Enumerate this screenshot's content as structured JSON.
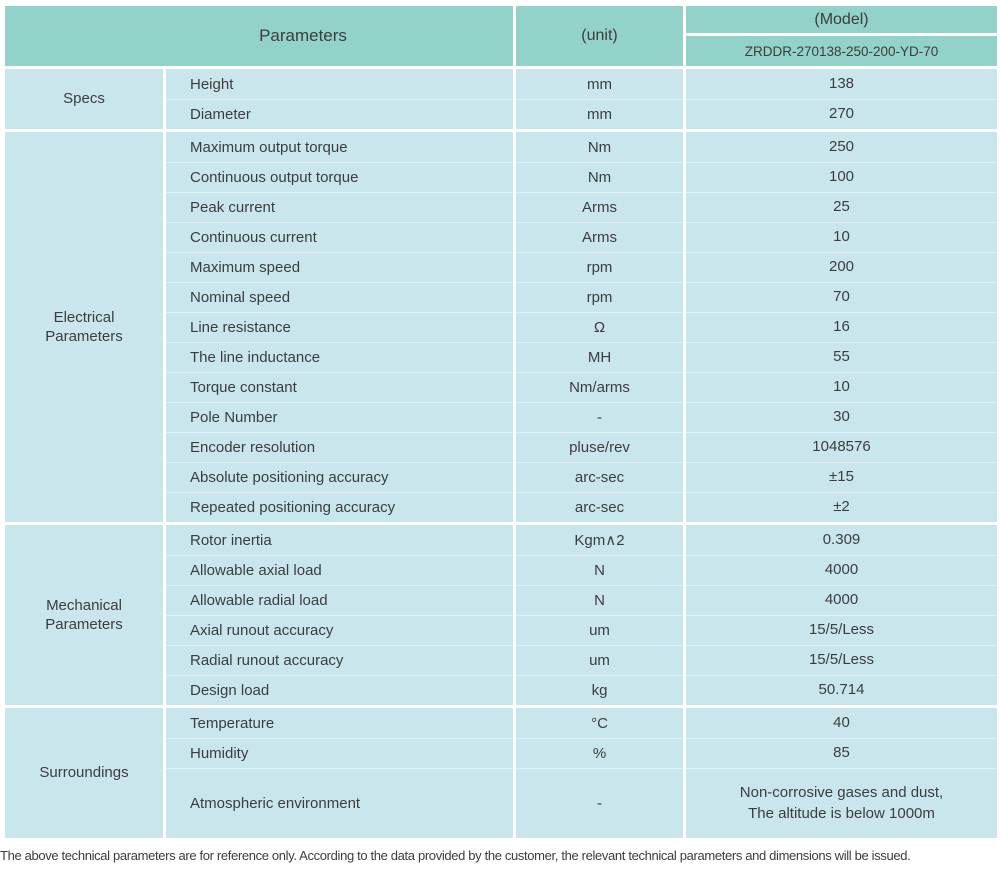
{
  "colors": {
    "header_bg": "#92d2c8",
    "cell_bg": "#c9e6ec",
    "grid_line": "#ffffff",
    "row_divider": "#e4f1f4",
    "text": "#3d3d3d"
  },
  "table": {
    "header": {
      "parameters_label": "Parameters",
      "unit_label": "(unit)",
      "model_label": "(Model)",
      "model_value": "ZRDDR-270138-250-200-YD-70"
    },
    "sections": [
      {
        "category": "Specs",
        "rows": [
          {
            "name": "Height",
            "unit": "mm",
            "value": "138"
          },
          {
            "name": "Diameter",
            "unit": "mm",
            "value": "270"
          }
        ]
      },
      {
        "category": "Electrical\nParameters",
        "rows": [
          {
            "name": "Maximum output torque",
            "unit": "Nm",
            "value": "250"
          },
          {
            "name": "Continuous output torque",
            "unit": "Nm",
            "value": "100"
          },
          {
            "name": "Peak current",
            "unit": "Arms",
            "value": "25"
          },
          {
            "name": "Continuous current",
            "unit": "Arms",
            "value": "10"
          },
          {
            "name": "Maximum speed",
            "unit": "rpm",
            "value": "200"
          },
          {
            "name": "Nominal speed",
            "unit": "rpm",
            "value": "70"
          },
          {
            "name": "Line resistance",
            "unit": "Ω",
            "value": "16"
          },
          {
            "name": "The line inductance",
            "unit": "MH",
            "value": "55"
          },
          {
            "name": "Torque constant",
            "unit": "Nm/arms",
            "value": "10"
          },
          {
            "name": "Pole Number",
            "unit": "-",
            "value": "30"
          },
          {
            "name": "Encoder resolution",
            "unit": "pluse/rev",
            "value": "1048576"
          },
          {
            "name": "Absolute positioning accuracy",
            "unit": "arc-sec",
            "value": "±15"
          },
          {
            "name": "Repeated positioning accuracy",
            "unit": "arc-sec",
            "value": "±2"
          }
        ]
      },
      {
        "category": "Mechanical\nParameters",
        "rows": [
          {
            "name": "Rotor inertia",
            "unit": "Kgm∧2",
            "value": "0.309"
          },
          {
            "name": "Allowable axial load",
            "unit": "N",
            "value": "4000"
          },
          {
            "name": "Allowable radial load",
            "unit": "N",
            "value": "4000"
          },
          {
            "name": "Axial runout accuracy",
            "unit": "um",
            "value": "15/5/Less"
          },
          {
            "name": "Radial runout accuracy",
            "unit": "um",
            "value": "15/5/Less"
          },
          {
            "name": "Design load",
            "unit": "kg",
            "value": "50.714"
          }
        ]
      },
      {
        "category": "Surroundings",
        "rows": [
          {
            "name": "Temperature",
            "unit": "°C",
            "value": "40"
          },
          {
            "name": "Humidity",
            "unit": "%",
            "value": "85"
          },
          {
            "name": "Atmospheric environment",
            "unit": "-",
            "value": "Non-corrosive gases and dust,\nThe altitude is below 1000m"
          }
        ]
      }
    ],
    "footer_note": "The above technical parameters are for reference only. According to the data provided by the customer, the relevant technical parameters and dimensions will be issued."
  }
}
